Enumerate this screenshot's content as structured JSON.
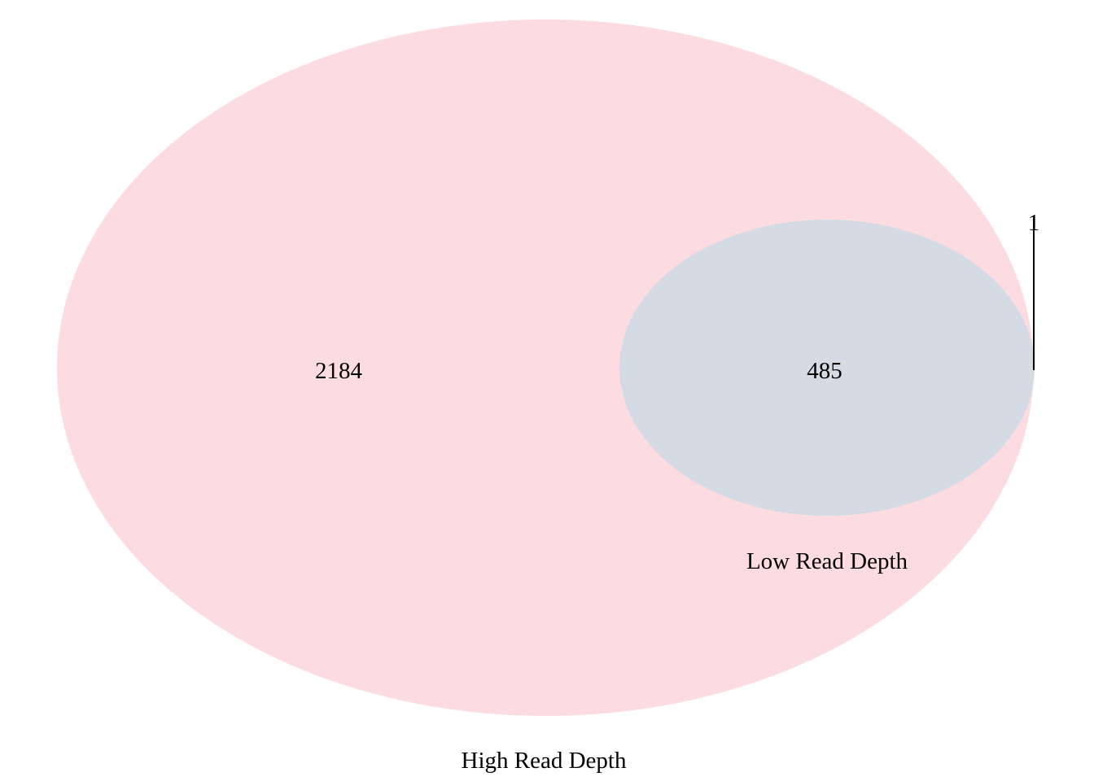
{
  "diagram": {
    "type": "venn",
    "sets": [
      {
        "name": "High Read Depth",
        "only_count": "2184",
        "color": "#fcdce1"
      },
      {
        "name": "Low Read Depth",
        "only_count": "1",
        "color": "#d5dbe5"
      }
    ],
    "overlap_count": "485",
    "leader_line_color": "#000000"
  }
}
